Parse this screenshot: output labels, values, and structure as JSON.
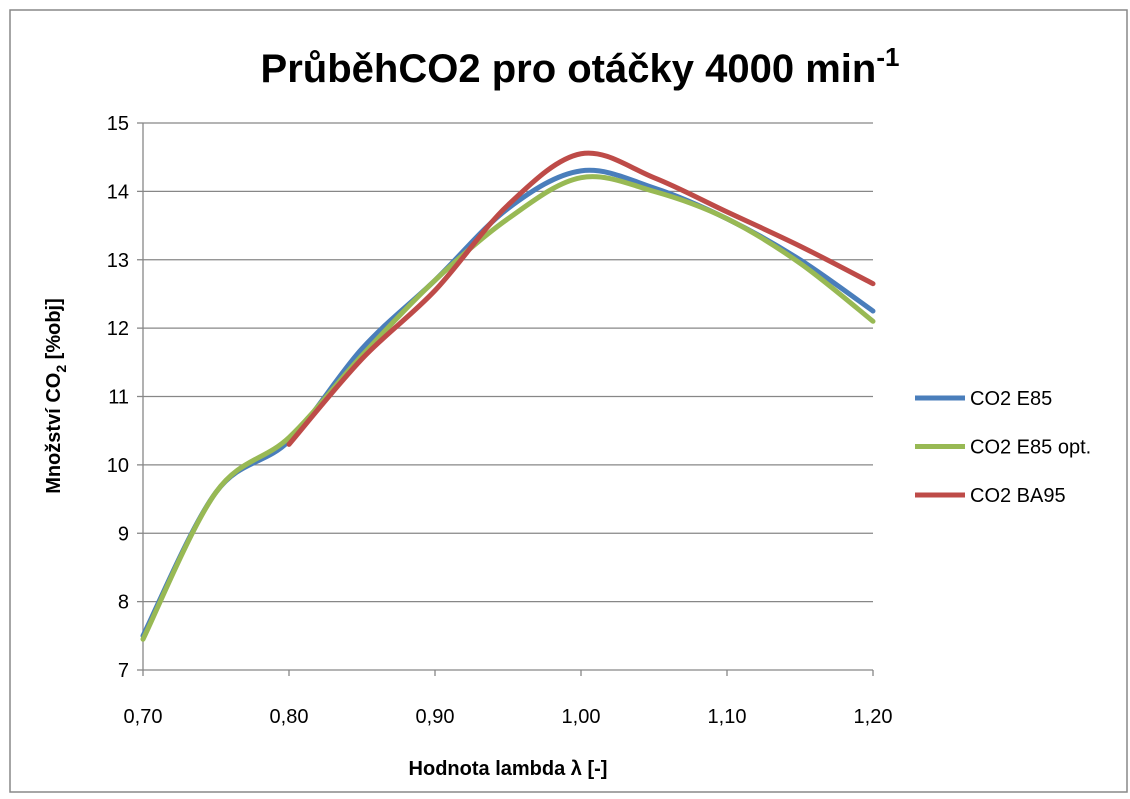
{
  "chart_data": {
    "type": "line",
    "title": "PrůběhCO2 pro otáčky 4000 min",
    "title_superscript": "-1",
    "x_label": "Hodnota lambda λ [-]",
    "y_label": [
      "Množství CO",
      "2",
      " [%obj]"
    ],
    "x": [
      0.7,
      0.75,
      0.8,
      0.85,
      0.9,
      0.95,
      1.0,
      1.05,
      1.1,
      1.15,
      1.2
    ],
    "series": [
      {
        "name": "CO2 E85",
        "color": "#4a7ebb",
        "values": [
          7.5,
          9.6,
          10.35,
          11.7,
          12.7,
          13.75,
          14.3,
          14.05,
          13.6,
          13.0,
          12.25
        ]
      },
      {
        "name": "CO2 E85 opt.",
        "color": "#98b954",
        "values": [
          7.45,
          9.6,
          10.4,
          11.6,
          12.7,
          13.6,
          14.2,
          14.0,
          13.6,
          12.95,
          12.1
        ]
      },
      {
        "name": "CO2 BA95",
        "color": "#be4b48",
        "values": [
          null,
          null,
          10.3,
          11.55,
          12.55,
          13.8,
          14.55,
          14.2,
          13.7,
          13.2,
          12.65
        ]
      }
    ],
    "xlim": [
      0.7,
      1.2
    ],
    "xticks": [
      {
        "value": 0.7,
        "label": "0,70"
      },
      {
        "value": 0.8,
        "label": "0,80"
      },
      {
        "value": 0.9,
        "label": "0,90"
      },
      {
        "value": 1.0,
        "label": "1,00"
      },
      {
        "value": 1.1,
        "label": "1,10"
      },
      {
        "value": 1.2,
        "label": "1,20"
      }
    ],
    "ylim": [
      7,
      15
    ],
    "yticks": [
      7,
      8,
      9,
      10,
      11,
      12,
      13,
      14,
      15
    ],
    "grid": true,
    "legend": "right"
  }
}
